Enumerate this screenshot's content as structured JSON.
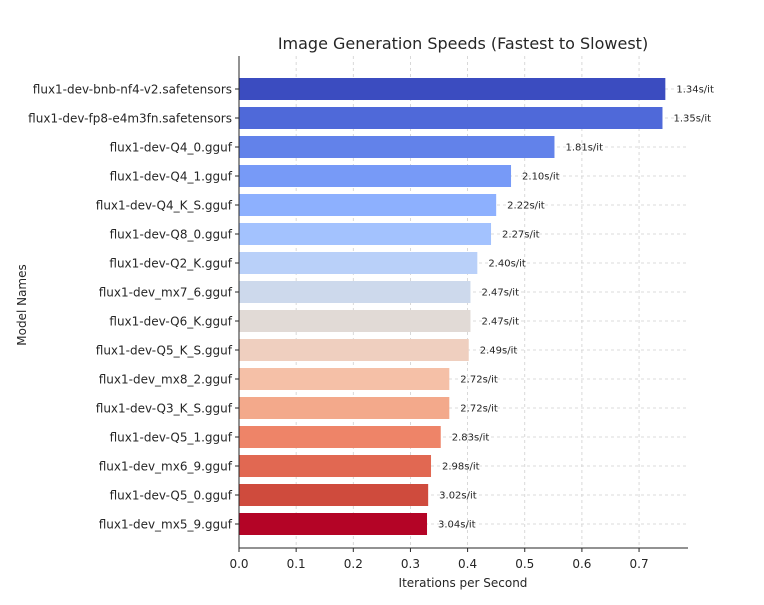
{
  "chart_data": {
    "type": "bar",
    "orientation": "horizontal",
    "title": "Image Generation Speeds (Fastest to Slowest)",
    "xlabel": "Iterations per Second",
    "ylabel": "Model Names",
    "xlim": [
      0,
      0.78
    ],
    "xticks": [
      0.0,
      0.1,
      0.2,
      0.3,
      0.4,
      0.5,
      0.6,
      0.7
    ],
    "xtick_labels": [
      "0.0",
      "0.1",
      "0.2",
      "0.3",
      "0.4",
      "0.5",
      "0.6",
      "0.7"
    ],
    "grid": true,
    "categories": [
      "flux1-dev-bnb-nf4-v2.safetensors",
      "flux1-dev-fp8-e4m3fn.safetensors",
      "flux1-dev-Q4_0.gguf",
      "flux1-dev-Q4_1.gguf",
      "flux1-dev-Q4_K_S.gguf",
      "flux1-dev-Q8_0.gguf",
      "flux1-dev-Q2_K.gguf",
      "flux1-dev_mx7_6.gguf",
      "flux1-dev-Q6_K.gguf",
      "flux1-dev-Q5_K_S.gguf",
      "flux1-dev_mx8_2.gguf",
      "flux1-dev-Q3_K_S.gguf",
      "flux1-dev-Q5_1.gguf",
      "flux1-dev_mx6_9.gguf",
      "flux1-dev-Q5_0.gguf",
      "flux1-dev_mx5_9.gguf"
    ],
    "values": [
      0.746,
      0.741,
      0.552,
      0.476,
      0.45,
      0.441,
      0.417,
      0.405,
      0.405,
      0.402,
      0.368,
      0.368,
      0.353,
      0.336,
      0.331,
      0.329
    ],
    "data_labels": [
      "1.34s/it",
      "1.35s/it",
      "1.81s/it",
      "2.10s/it",
      "2.22s/it",
      "2.27s/it",
      "2.40s/it",
      "2.47s/it",
      "2.47s/it",
      "2.49s/it",
      "2.72s/it",
      "2.72s/it",
      "2.83s/it",
      "2.98s/it",
      "3.02s/it",
      "3.04s/it"
    ],
    "colors": [
      "#3b4cc0",
      "#4f69d9",
      "#6282ea",
      "#779af7",
      "#8db0fe",
      "#a3c2fe",
      "#b9d0f9",
      "#cdd9ec",
      "#e1dad6",
      "#efcfbf",
      "#f5c0a7",
      "#f3a98b",
      "#ee8468",
      "#e16852",
      "#cf4b3d",
      "#b40426"
    ]
  }
}
